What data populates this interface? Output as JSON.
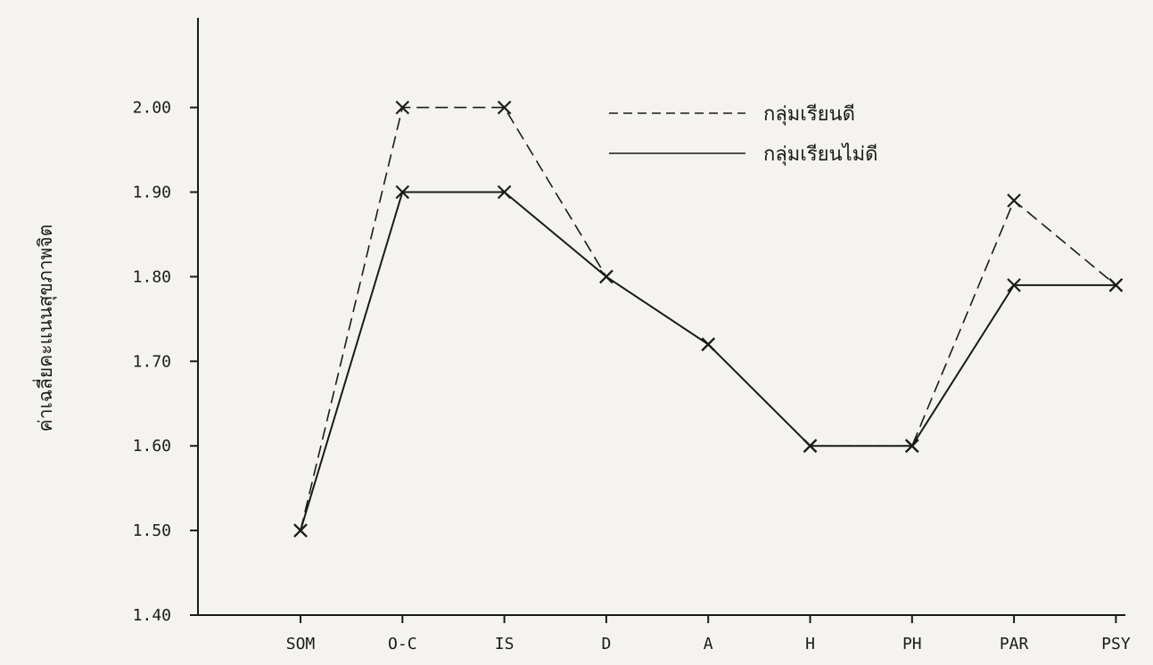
{
  "chart_data": {
    "type": "line",
    "title": "",
    "xlabel": "",
    "ylabel": "ค่าเฉลี่ยคะแนนสุขภาพจิต",
    "categories": [
      "SOM",
      "O-C",
      "IS",
      "D",
      "A",
      "H",
      "PH",
      "PAR",
      "PSY"
    ],
    "y_ticks": [
      "1.40",
      "1.50",
      "1.60",
      "1.70",
      "1.80",
      "1.90",
      "2.00"
    ],
    "ylim": [
      1.4,
      2.05
    ],
    "grid": false,
    "legend_position": "top-right",
    "series": [
      {
        "name": "กลุ่มเรียนดี",
        "line_style": "dashed",
        "values": [
          1.5,
          2.0,
          2.0,
          1.8,
          1.72,
          1.6,
          1.6,
          1.89,
          1.79
        ]
      },
      {
        "name": "กลุ่มเรียนไม่ดี",
        "line_style": "solid",
        "values": [
          1.5,
          1.9,
          1.9,
          1.8,
          1.72,
          1.6,
          1.6,
          1.79,
          1.79
        ]
      }
    ],
    "colors": {
      "line": "#1a1a1a",
      "background": "#f4f3ef"
    }
  }
}
